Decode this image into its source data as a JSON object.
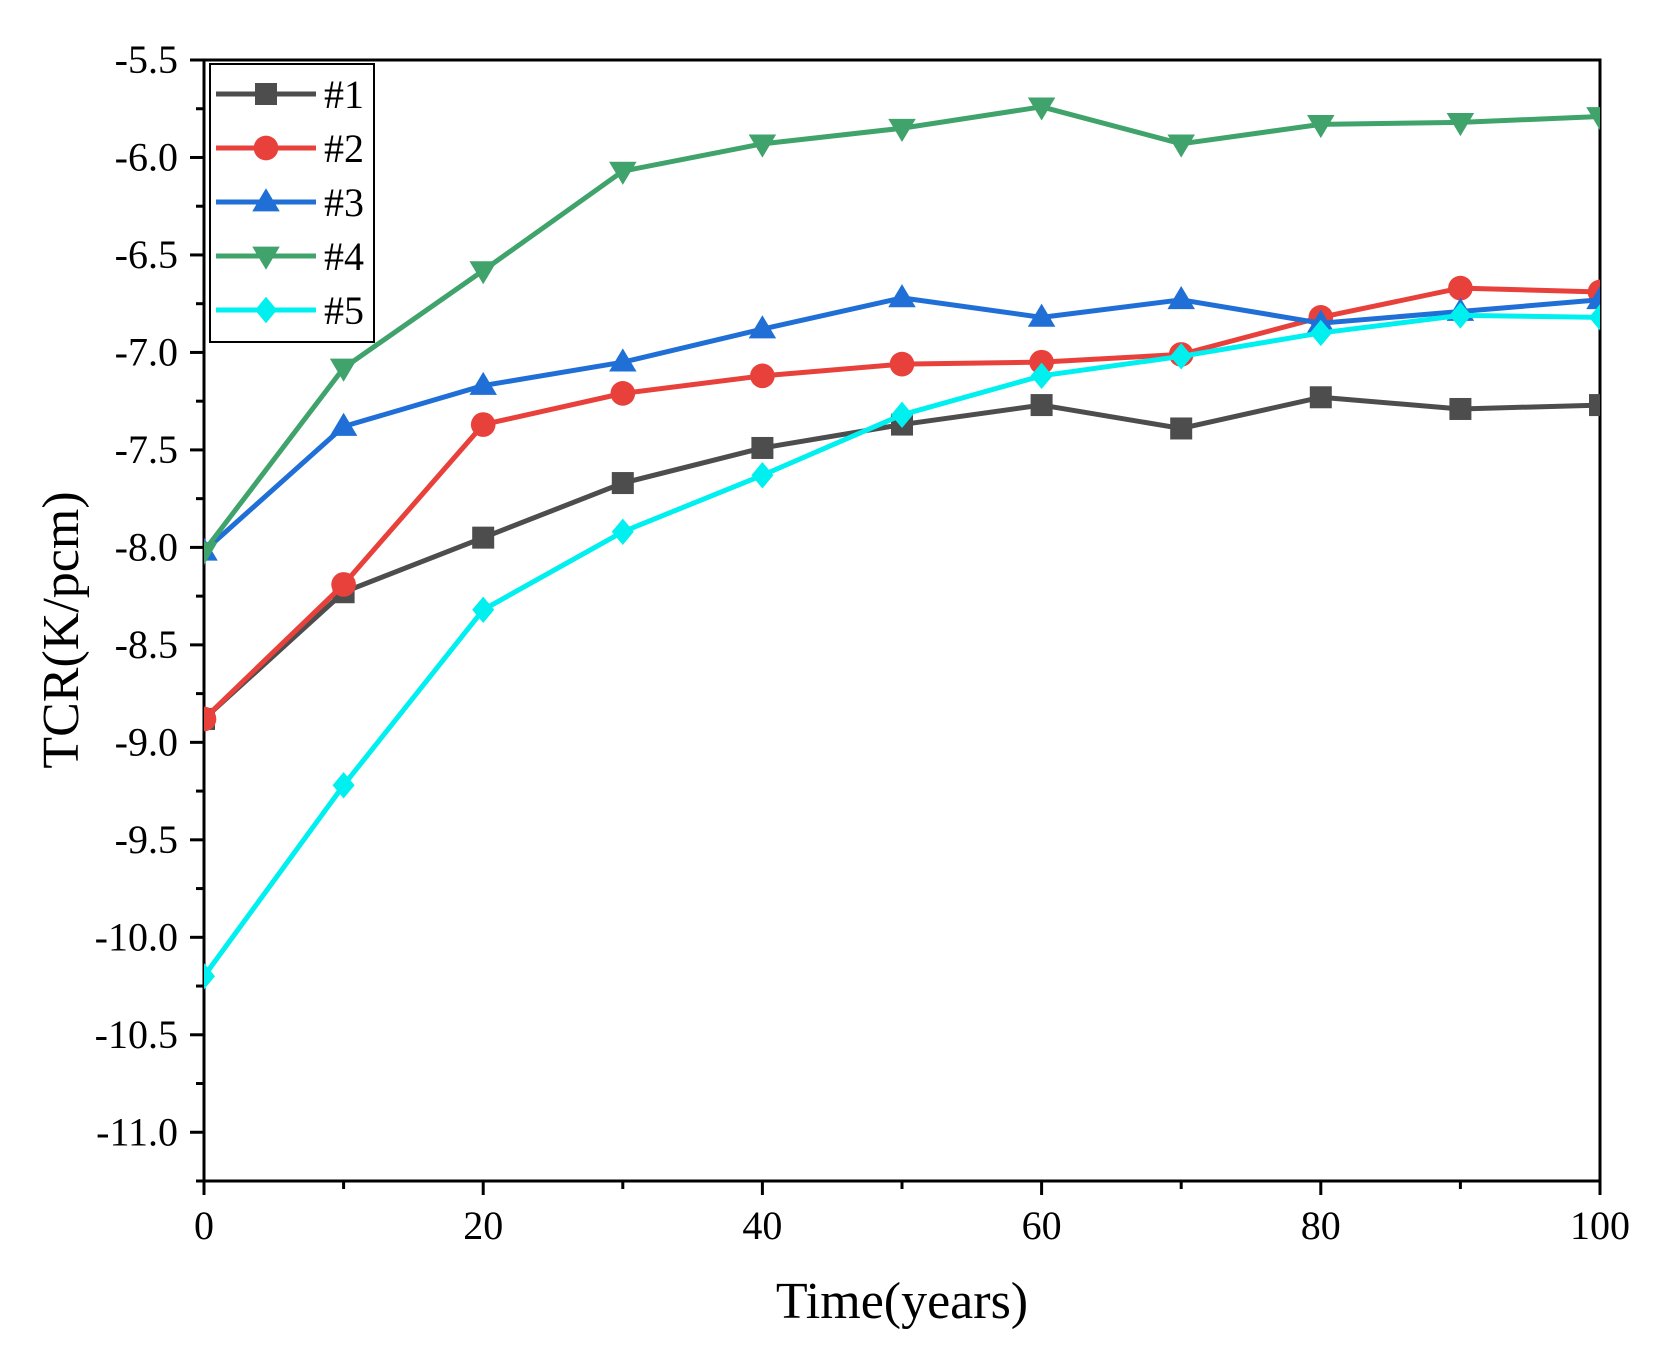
{
  "chart_data": {
    "type": "line",
    "xlabel": "Time(years)",
    "ylabel": "TCR(K/pcm)",
    "xlim": [
      0,
      100
    ],
    "ylim": [
      -11.25,
      -5.5
    ],
    "x_ticks": [
      0,
      20,
      40,
      60,
      80,
      100
    ],
    "x_tick_labels": [
      "0",
      "20",
      "40",
      "60",
      "80",
      "100"
    ],
    "y_ticks": [
      -5.5,
      -6.0,
      -6.5,
      -7.0,
      -7.5,
      -8.0,
      -8.5,
      -9.0,
      -9.5,
      -10.0,
      -10.5,
      -11.0
    ],
    "y_tick_labels": [
      "-5.5",
      "-6.0",
      "-6.5",
      "-7.0",
      "-7.5",
      "-8.0",
      "-8.5",
      "-9.0",
      "-9.5",
      "-10.0",
      "-10.5",
      "-11.0"
    ],
    "x": [
      0,
      10,
      20,
      30,
      40,
      50,
      60,
      70,
      80,
      90,
      100
    ],
    "legend_position": "top-left",
    "grid": false,
    "series": [
      {
        "name": "#1",
        "color": "#4d4d4d",
        "marker": "square",
        "values": [
          -8.88,
          -8.23,
          -7.95,
          -7.67,
          -7.49,
          -7.37,
          -7.27,
          -7.39,
          -7.23,
          -7.29,
          -7.27
        ]
      },
      {
        "name": "#2",
        "color": "#e8413b",
        "marker": "circle",
        "values": [
          -8.88,
          -8.19,
          -7.37,
          -7.21,
          -7.12,
          -7.06,
          -7.05,
          -7.01,
          -6.82,
          -6.67,
          -6.69
        ]
      },
      {
        "name": "#3",
        "color": "#1f6fd6",
        "marker": "triangle-up",
        "values": [
          -8.02,
          -7.38,
          -7.17,
          -7.05,
          -6.88,
          -6.72,
          -6.82,
          -6.73,
          -6.85,
          -6.79,
          -6.73
        ]
      },
      {
        "name": "#4",
        "color": "#3fa36b",
        "marker": "triangle-down",
        "values": [
          -8.02,
          -7.08,
          -6.58,
          -6.07,
          -5.93,
          -5.85,
          -5.74,
          -5.93,
          -5.83,
          -5.82,
          -5.79
        ]
      },
      {
        "name": "#5",
        "color": "#00f0f0",
        "marker": "diamond",
        "values": [
          -10.2,
          -9.22,
          -8.32,
          -7.92,
          -7.63,
          -7.32,
          -7.12,
          -7.02,
          -6.9,
          -6.81,
          -6.82
        ]
      }
    ]
  }
}
